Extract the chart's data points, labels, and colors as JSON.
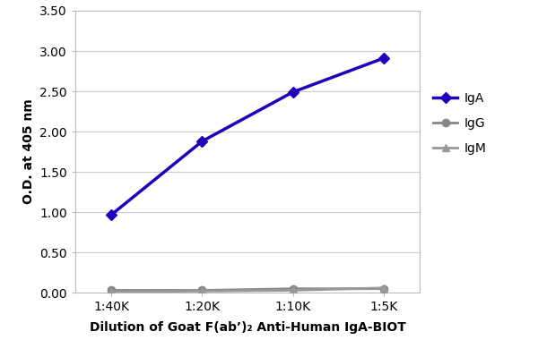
{
  "x_labels": [
    "1:40K",
    "1:20K",
    "1:10K",
    "1:5K"
  ],
  "x_values": [
    1,
    2,
    3,
    4
  ],
  "IgA_values": [
    0.97,
    1.88,
    2.49,
    2.91
  ],
  "IgG_values": [
    0.03,
    0.03,
    0.05,
    0.05
  ],
  "IgM_values": [
    0.01,
    0.02,
    0.03,
    0.06
  ],
  "IgA_color": "#2200BB",
  "IgG_color": "#888888",
  "IgM_color": "#999999",
  "ylabel": "O.D. at 405 nm",
  "xlabel": "Dilution of Goat F(ab’)₂ Anti-Human IgA-BIOT",
  "ylim": [
    0,
    3.5
  ],
  "yticks": [
    0.0,
    0.5,
    1.0,
    1.5,
    2.0,
    2.5,
    3.0,
    3.5
  ],
  "background_color": "#ffffff",
  "grid_color": "#cccccc",
  "spine_color": "#bbbbbb",
  "legend_labels": [
    "IgA",
    "IgG",
    "IgM"
  ],
  "tick_label_fontsize": 10,
  "axis_label_fontsize": 10
}
